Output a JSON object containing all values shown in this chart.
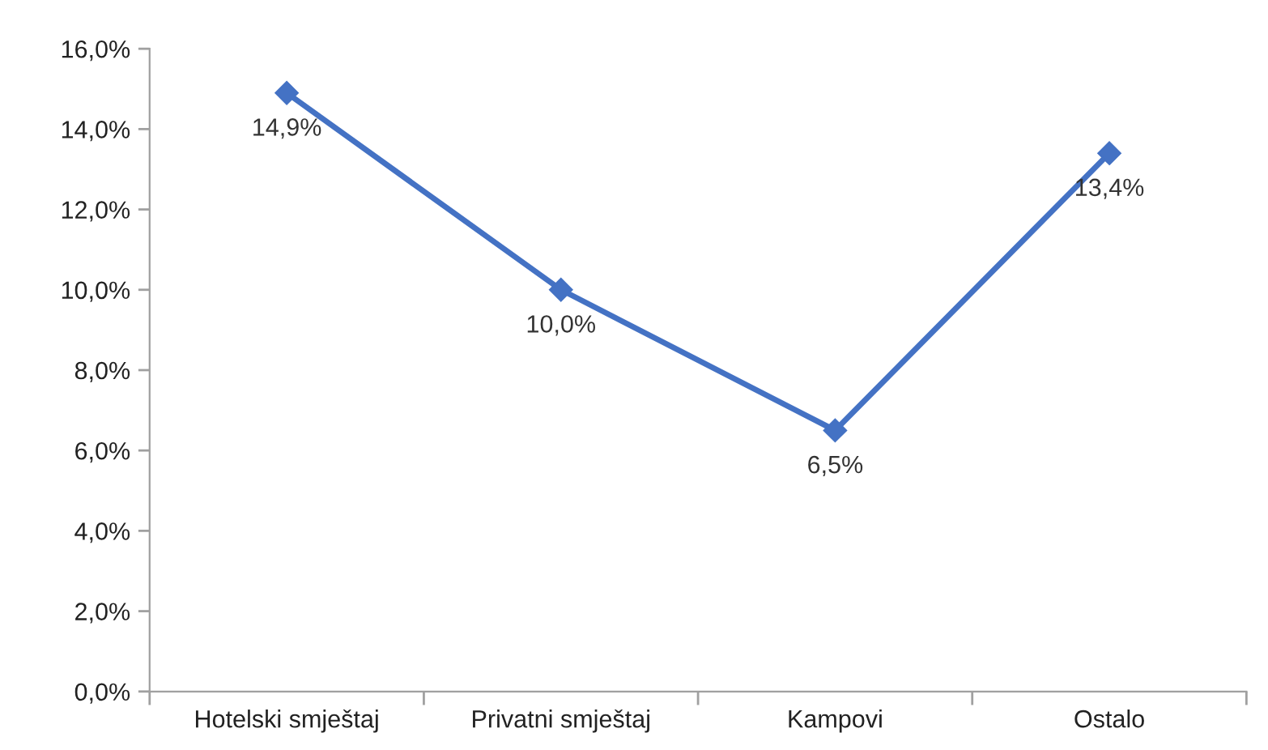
{
  "chart_data": {
    "type": "line",
    "categories": [
      "Hotelski smještaj",
      "Privatni smještaj",
      "Kampovi",
      "Ostalo"
    ],
    "series": [
      {
        "color": "#4472c4",
        "values": [
          14.9,
          10.0,
          6.5,
          13.4
        ],
        "value_labels": [
          "14,9%",
          "10,0%",
          "6,5%",
          "13,4%"
        ]
      }
    ],
    "ylim": [
      0,
      16
    ],
    "yticks": [
      {
        "value": 0,
        "label": "0,0%"
      },
      {
        "value": 2,
        "label": "2,0%"
      },
      {
        "value": 4,
        "label": "4,0%"
      },
      {
        "value": 6,
        "label": "6,0%"
      },
      {
        "value": 8,
        "label": "8,0%"
      },
      {
        "value": 10,
        "label": "10,0%"
      },
      {
        "value": 12,
        "label": "12,0%"
      },
      {
        "value": 14,
        "label": "14,0%"
      },
      {
        "value": 16,
        "label": "16,0%"
      }
    ],
    "marker": "diamond",
    "line_style": "solid",
    "grid": false,
    "legend": false
  }
}
